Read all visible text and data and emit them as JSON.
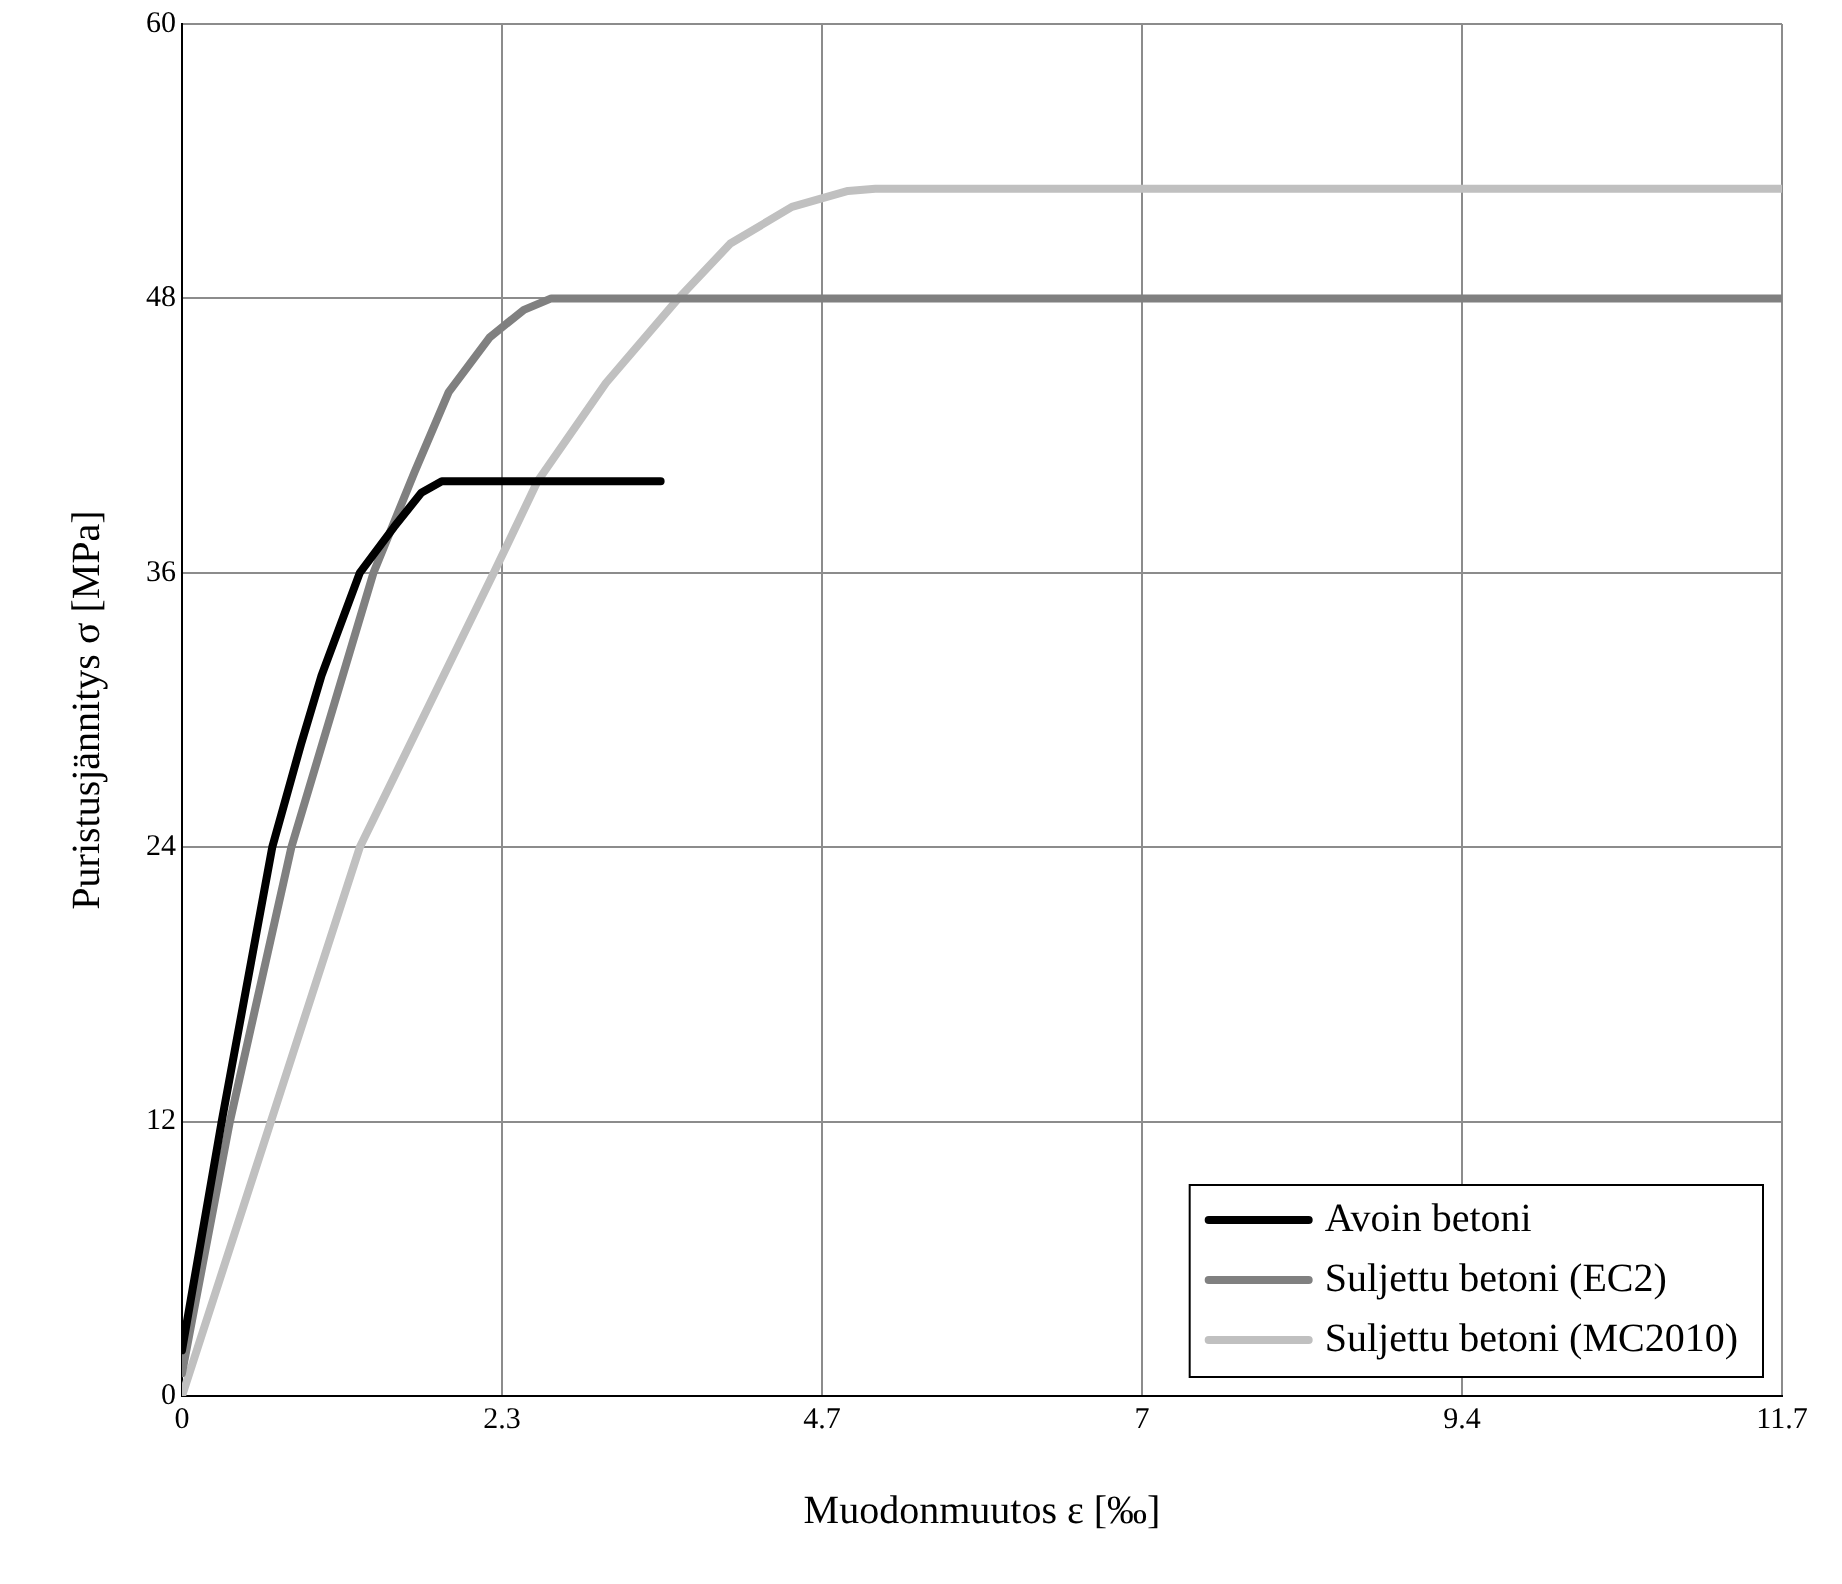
{
  "chart_data": {
    "type": "line",
    "xlabel": "Muodonmuutos ε [‰]",
    "ylabel": "Puristusjännitys σ [MPa]",
    "xlim": [
      0,
      11.7
    ],
    "ylim": [
      0,
      60
    ],
    "xticks": [
      0,
      {
        "value": 2.34,
        "label": "2.3"
      },
      {
        "value": 4.68,
        "label": "4.7"
      },
      {
        "value": 7.02,
        "label": "7"
      },
      {
        "value": 9.36,
        "label": "9.4"
      },
      11.7
    ],
    "yticks": [
      0,
      12,
      24,
      36,
      48,
      60
    ],
    "grid": true,
    "legend": "bottom right",
    "marker": "none",
    "line_style": "solid",
    "series": [
      {
        "name": "Avoin betoni",
        "color": "#000000",
        "x": [
          0,
          0.29,
          0.66,
          0.87,
          1.02,
          1.3,
          1.55,
          1.75,
          1.9,
          3.5
        ],
        "values": [
          2,
          12,
          24,
          28.5,
          31.5,
          36,
          38,
          39.5,
          40,
          40
        ]
      },
      {
        "name": "Suljettu betoni (EC2)",
        "color": "#808080",
        "x": [
          0,
          0.35,
          0.8,
          1.4,
          1.7,
          1.95,
          2.25,
          2.5,
          2.7,
          11.7
        ],
        "values": [
          1,
          12,
          24,
          36,
          40.4,
          43.9,
          46.3,
          47.5,
          48,
          48
        ]
      },
      {
        "name": "Suljettu betoni (MC2010)",
        "color": "#c0c0c0",
        "x": [
          0,
          0.65,
          1.3,
          2.28,
          2.6,
          3.1,
          3.63,
          4.01,
          4.46,
          4.87,
          5.07,
          11.7
        ],
        "values": [
          0,
          12,
          24,
          36,
          40,
          44.3,
          48,
          50.4,
          52,
          52.7,
          52.8,
          52.8
        ]
      }
    ]
  }
}
